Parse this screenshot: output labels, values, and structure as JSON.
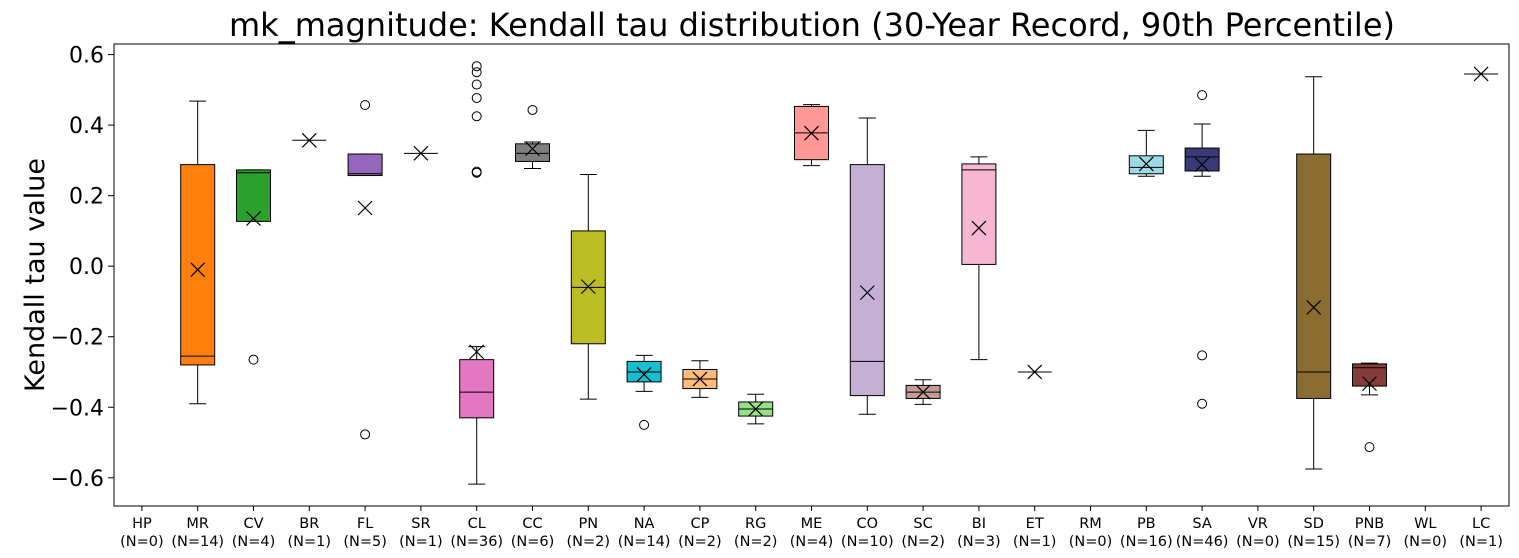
{
  "chart_data": {
    "type": "box",
    "title": "mk_magnitude: Kendall tau distribution (30-Year Record, 90th Percentile)",
    "xlabel": "",
    "ylabel": "Kendall tau value",
    "ylim": [
      -0.68,
      0.63
    ],
    "yticks": [
      -0.6,
      -0.4,
      -0.2,
      0.0,
      0.2,
      0.4,
      0.6
    ],
    "ytick_labels": [
      "−0.6",
      "−0.4",
      "−0.2",
      "0.0",
      "0.2",
      "0.4",
      "0.6"
    ],
    "grid": false,
    "legend": null,
    "categories": [
      {
        "code": "HP",
        "n_label": "(N=0)",
        "color": null
      },
      {
        "code": "MR",
        "n_label": "(N=14)",
        "color": "#ff7f0e",
        "q1": -0.28,
        "median": -0.255,
        "q3": 0.288,
        "whislo": -0.39,
        "whishi": 0.468,
        "mean": -0.01,
        "fliers": []
      },
      {
        "code": "CV",
        "n_label": "(N=4)",
        "color": "#2ca02c",
        "q1": 0.127,
        "median": 0.265,
        "q3": 0.273,
        "whislo": 0.127,
        "whishi": 0.273,
        "mean": 0.135,
        "fliers": [
          -0.265
        ]
      },
      {
        "code": "BR",
        "n_label": "(N=1)",
        "color": "#d62728",
        "q1": 0.357,
        "median": 0.357,
        "q3": 0.357,
        "whislo": 0.357,
        "whishi": 0.357,
        "mean": 0.357,
        "fliers": []
      },
      {
        "code": "FL",
        "n_label": "(N=5)",
        "color": "#9467bd",
        "q1": 0.257,
        "median": 0.262,
        "q3": 0.318,
        "whislo": 0.257,
        "whishi": 0.318,
        "mean": 0.165,
        "fliers": [
          0.457,
          -0.477
        ]
      },
      {
        "code": "SR",
        "n_label": "(N=1)",
        "color": "#8c564b",
        "q1": 0.32,
        "median": 0.32,
        "q3": 0.32,
        "whislo": 0.32,
        "whishi": 0.32,
        "mean": 0.32,
        "fliers": []
      },
      {
        "code": "CL",
        "n_label": "(N=36)",
        "color": "#e377c2",
        "q1": -0.43,
        "median": -0.357,
        "q3": -0.265,
        "whislo": -0.618,
        "whishi": -0.228,
        "mean": -0.243,
        "fliers": [
          0.567,
          0.55,
          0.515,
          0.477,
          0.425,
          0.268,
          0.265
        ]
      },
      {
        "code": "CC",
        "n_label": "(N=6)",
        "color": "#7f7f7f",
        "q1": 0.297,
        "median": 0.32,
        "q3": 0.347,
        "whislo": 0.277,
        "whishi": 0.352,
        "mean": 0.333,
        "fliers": [
          0.443
        ]
      },
      {
        "code": "PN",
        "n_label": "(N=2)",
        "color": "#bcbd22",
        "q1": -0.22,
        "median": -0.06,
        "q3": 0.1,
        "whislo": -0.377,
        "whishi": 0.26,
        "mean": -0.058,
        "fliers": []
      },
      {
        "code": "NA",
        "n_label": "(N=14)",
        "color": "#17becf",
        "q1": -0.328,
        "median": -0.3,
        "q3": -0.27,
        "whislo": -0.355,
        "whishi": -0.253,
        "mean": -0.307,
        "fliers": [
          -0.45
        ]
      },
      {
        "code": "CP",
        "n_label": "(N=2)",
        "color": "#ffbb78",
        "q1": -0.347,
        "median": -0.32,
        "q3": -0.293,
        "whislo": -0.372,
        "whishi": -0.268,
        "mean": -0.32,
        "fliers": []
      },
      {
        "code": "RG",
        "n_label": "(N=2)",
        "color": "#98df8a",
        "q1": -0.425,
        "median": -0.405,
        "q3": -0.385,
        "whislo": -0.447,
        "whishi": -0.363,
        "mean": -0.405,
        "fliers": []
      },
      {
        "code": "ME",
        "n_label": "(N=4)",
        "color": "#ff9896",
        "q1": 0.302,
        "median": 0.378,
        "q3": 0.453,
        "whislo": 0.285,
        "whishi": 0.458,
        "mean": 0.377,
        "fliers": []
      },
      {
        "code": "CO",
        "n_label": "(N=10)",
        "color": "#c5b0d5",
        "q1": -0.367,
        "median": -0.27,
        "q3": 0.288,
        "whislo": -0.42,
        "whishi": 0.42,
        "mean": -0.075,
        "fliers": []
      },
      {
        "code": "SC",
        "n_label": "(N=2)",
        "color": "#c49c94",
        "q1": -0.375,
        "median": -0.357,
        "q3": -0.338,
        "whislo": -0.392,
        "whishi": -0.322,
        "mean": -0.357,
        "fliers": []
      },
      {
        "code": "BI",
        "n_label": "(N=3)",
        "color": "#f7b6d2",
        "q1": 0.005,
        "median": 0.273,
        "q3": 0.29,
        "whislo": -0.265,
        "whishi": 0.31,
        "mean": 0.108,
        "fliers": []
      },
      {
        "code": "ET",
        "n_label": "(N=1)",
        "color": "#c7c7c7",
        "q1": -0.3,
        "median": -0.3,
        "q3": -0.3,
        "whislo": -0.3,
        "whishi": -0.3,
        "mean": -0.3,
        "fliers": []
      },
      {
        "code": "RM",
        "n_label": "(N=0)",
        "color": null
      },
      {
        "code": "PB",
        "n_label": "(N=16)",
        "color": "#9edae5",
        "q1": 0.262,
        "median": 0.28,
        "q3": 0.313,
        "whislo": 0.255,
        "whishi": 0.385,
        "mean": 0.29,
        "fliers": []
      },
      {
        "code": "SA",
        "n_label": "(N=46)",
        "color": "#393b79",
        "q1": 0.27,
        "median": 0.31,
        "q3": 0.335,
        "whislo": 0.255,
        "whishi": 0.403,
        "mean": 0.288,
        "fliers": [
          0.485,
          -0.253,
          -0.39
        ]
      },
      {
        "code": "VR",
        "n_label": "(N=0)",
        "color": null
      },
      {
        "code": "SD",
        "n_label": "(N=15)",
        "color": "#8c6d31",
        "q1": -0.375,
        "median": -0.3,
        "q3": 0.318,
        "whislo": -0.575,
        "whishi": 0.537,
        "mean": -0.117,
        "fliers": []
      },
      {
        "code": "PNB",
        "n_label": "(N=7)",
        "color": "#843c39",
        "q1": -0.34,
        "median": -0.288,
        "q3": -0.277,
        "whislo": -0.365,
        "whishi": -0.275,
        "mean": -0.333,
        "fliers": [
          -0.513
        ]
      },
      {
        "code": "WL",
        "n_label": "(N=0)",
        "color": null
      },
      {
        "code": "LC",
        "n_label": "(N=1)",
        "color": "#7b4173",
        "q1": 0.545,
        "median": 0.545,
        "q3": 0.545,
        "whislo": 0.545,
        "whishi": 0.545,
        "mean": 0.545,
        "fliers": []
      }
    ]
  }
}
